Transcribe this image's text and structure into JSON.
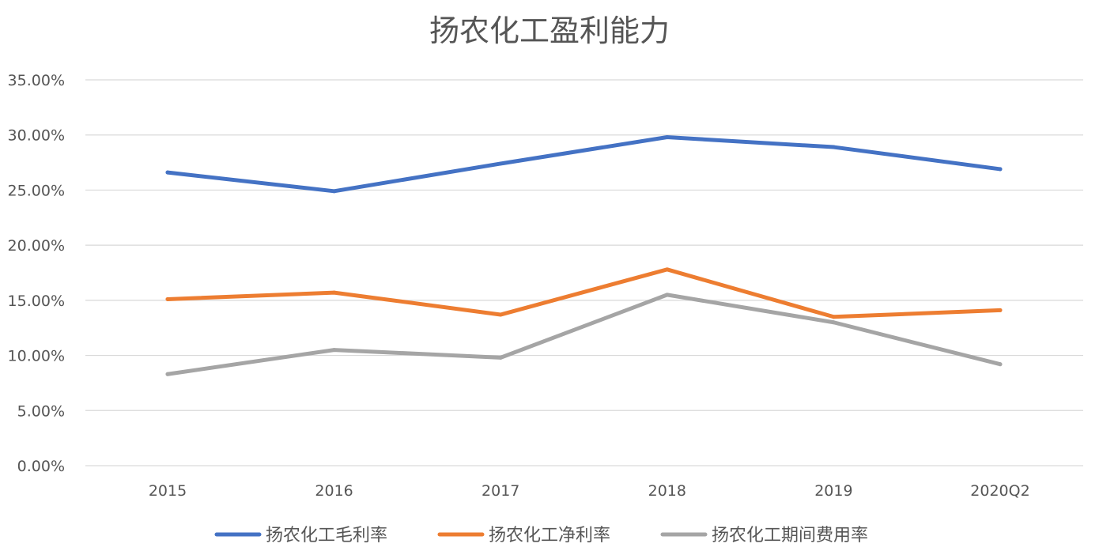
{
  "chart_data": {
    "type": "line",
    "title": "扬农化工盈利能力",
    "categories": [
      "2015",
      "2016",
      "2017",
      "2018",
      "2019",
      "2020Q2"
    ],
    "ylim": [
      0,
      35
    ],
    "yticks": [
      {
        "value": 0,
        "label": "0.00%"
      },
      {
        "value": 5,
        "label": "5.00%"
      },
      {
        "value": 10,
        "label": "10.00%"
      },
      {
        "value": 15,
        "label": "15.00%"
      },
      {
        "value": 20,
        "label": "20.00%"
      },
      {
        "value": 25,
        "label": "25.00%"
      },
      {
        "value": 30,
        "label": "30.00%"
      },
      {
        "value": 35,
        "label": "35.00%"
      }
    ],
    "grid": true,
    "legend_position": "bottom",
    "series": [
      {
        "name": "扬农化工毛利率",
        "color": "#4472c4",
        "values": [
          26.6,
          24.9,
          27.4,
          29.8,
          28.9,
          26.9
        ]
      },
      {
        "name": "扬农化工净利率",
        "color": "#ed7d31",
        "values": [
          15.1,
          15.7,
          13.7,
          17.8,
          13.5,
          14.1
        ]
      },
      {
        "name": "扬农化工期间费用率",
        "color": "#a5a5a5",
        "values": [
          8.3,
          10.5,
          9.8,
          15.5,
          13.0,
          9.2
        ]
      }
    ]
  }
}
